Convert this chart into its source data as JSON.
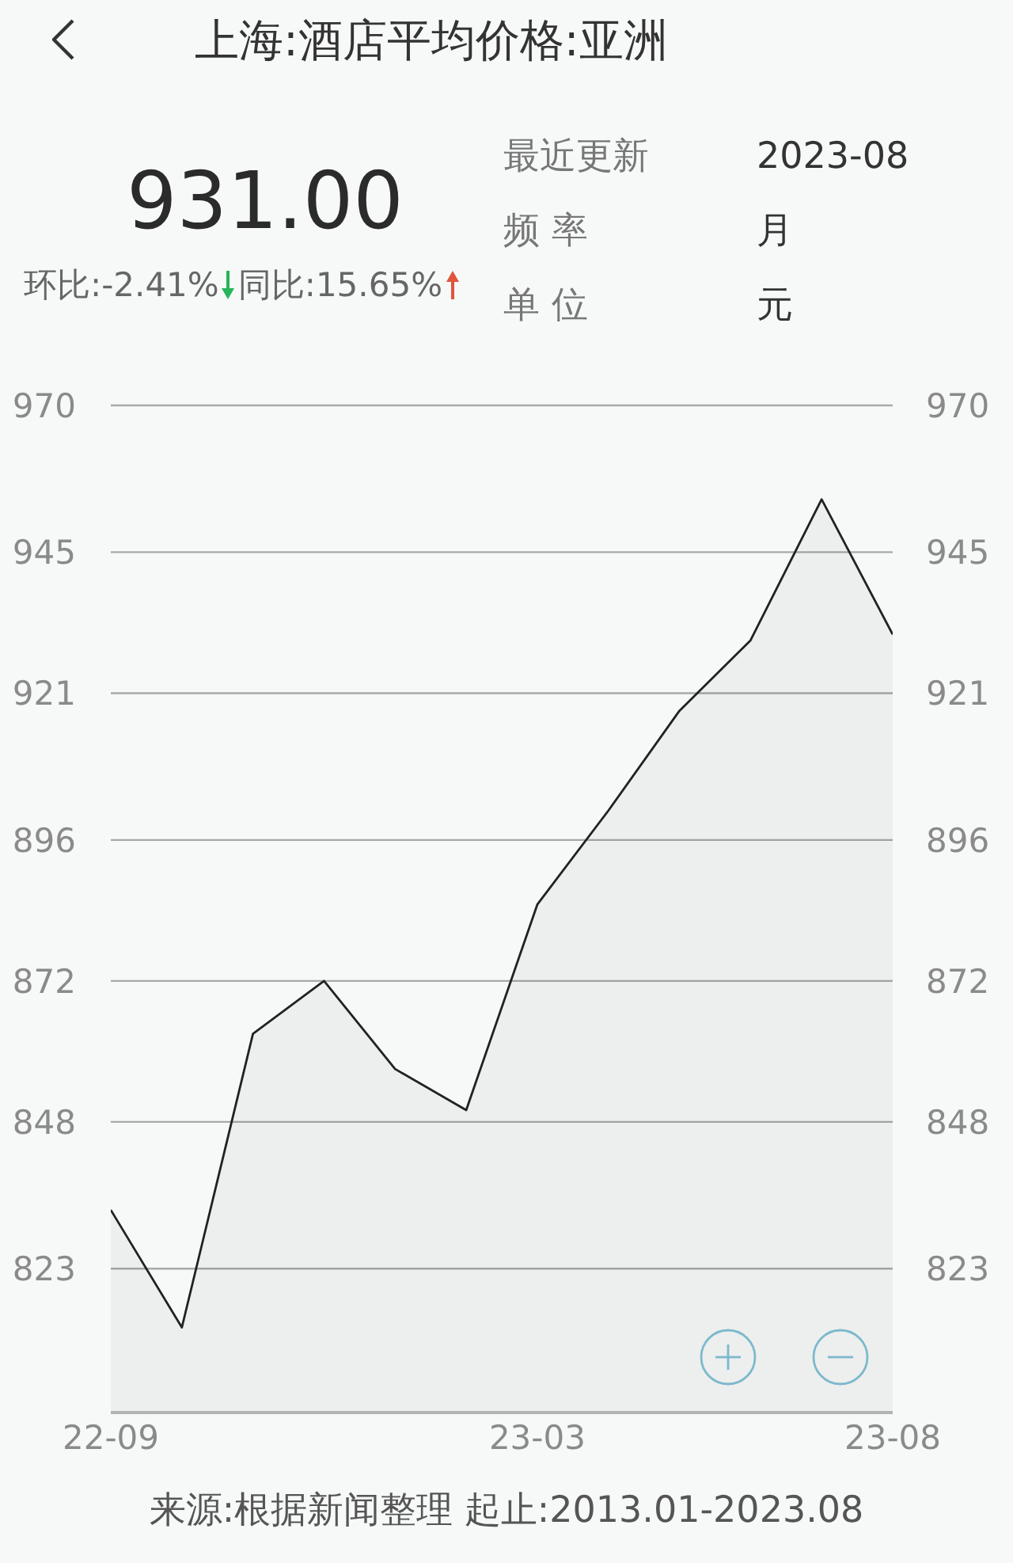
{
  "chart_data": {
    "type": "area",
    "title": "上海:酒店平均价格:亚洲",
    "annotations": [
      "931.00",
      "环比:-2.41%",
      "同比:15.65%",
      "最近更新",
      "2023-08",
      "频 率",
      "月",
      "单 位",
      "元",
      "来源:根据新闻整理 起止:2013.01-2023.08"
    ],
    "categories": [
      "22-09",
      null,
      null,
      null,
      null,
      null,
      "23-03",
      null,
      null,
      null,
      null,
      "23-08"
    ],
    "series": [
      {
        "color": "#222222",
        "values": [
          833,
          813,
          863,
          872,
          857,
          850,
          885,
          901,
          918,
          930,
          954,
          931
        ]
      }
    ],
    "ylim": [
      798.5,
      970
    ],
    "yticks": [
      823,
      848,
      872,
      896,
      921,
      945,
      970
    ],
    "y2lim": [
      798.5,
      970
    ],
    "y2ticks": [
      823,
      848,
      872,
      896,
      921,
      945,
      970
    ],
    "grid": "y"
  }
}
